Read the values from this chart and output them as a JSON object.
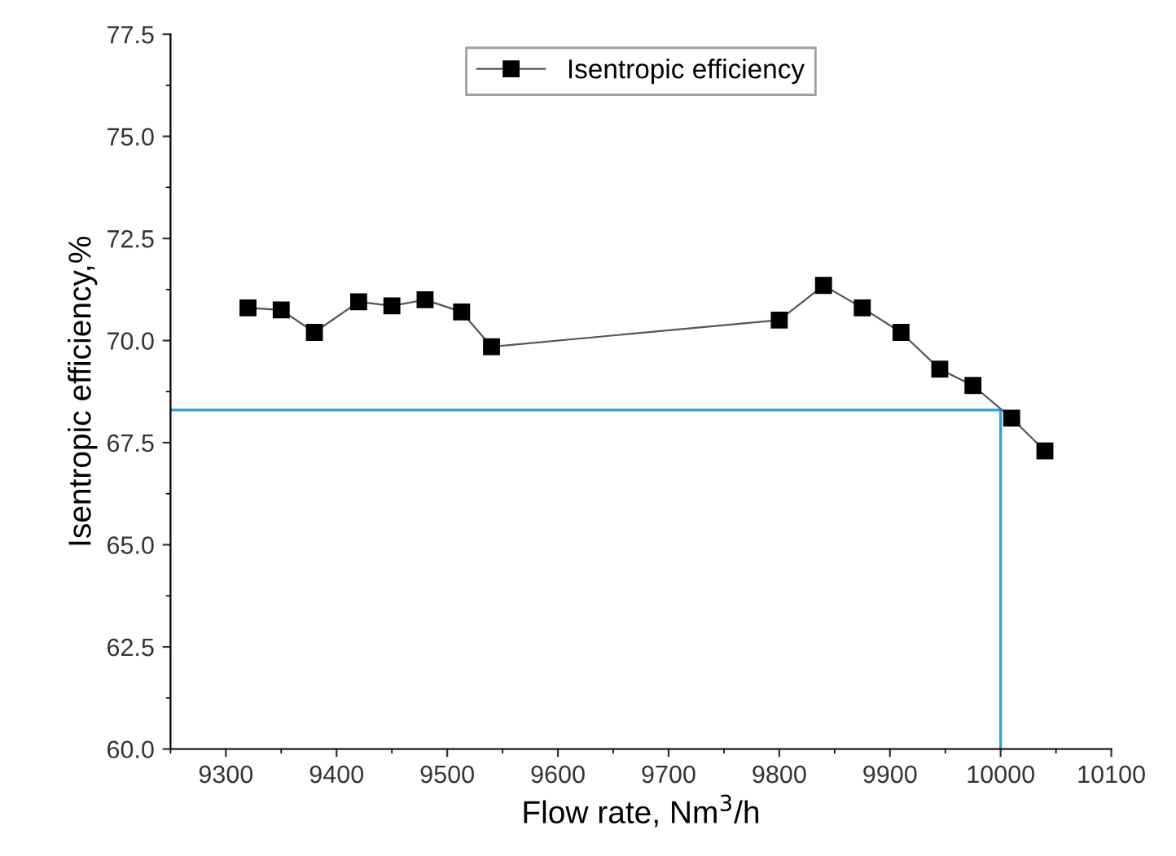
{
  "chart_data": {
    "type": "line",
    "xlabel": "Flow rate, Nm$^{3}$/h",
    "ylabel": "Isentropic efficiency,%",
    "x": [
      9320,
      9350,
      9380,
      9420,
      9450,
      9480,
      9513,
      9540,
      9800,
      9840,
      9875,
      9910,
      9945,
      9975,
      10010,
      10040
    ],
    "series": [
      {
        "name": "Isentropic efficiency",
        "color": "#000000",
        "values": [
          70.8,
          70.75,
          70.2,
          70.95,
          70.85,
          71.0,
          70.7,
          69.85,
          70.5,
          71.35,
          70.8,
          70.2,
          69.3,
          68.9,
          68.1,
          67.3
        ]
      }
    ],
    "xlim": [
      9250,
      10100
    ],
    "xticks": [
      9300,
      9400,
      9500,
      9600,
      9700,
      9800,
      9900,
      10000,
      10100
    ],
    "ylim": [
      60.0,
      77.5
    ],
    "yticks": [
      {
        "value": 60,
        "label": "60.0"
      },
      {
        "value": 62.5,
        "label": "62.5"
      },
      {
        "value": 65,
        "label": "65.0"
      },
      {
        "value": 67.5,
        "label": "67.5"
      },
      {
        "value": 70,
        "label": "70.0"
      },
      {
        "value": 72.5,
        "label": "72.5"
      },
      {
        "value": 75,
        "label": "75.0"
      },
      {
        "value": 77.5,
        "label": "77.5"
      }
    ],
    "ref_lines": [
      {
        "axis": "y",
        "value": 68.3,
        "color": "#29a3e0"
      },
      {
        "axis": "x",
        "value": 10000,
        "color": "#29a3e0"
      }
    ],
    "marker": "square",
    "line_style": "solid",
    "grid": false,
    "legend": "top"
  }
}
